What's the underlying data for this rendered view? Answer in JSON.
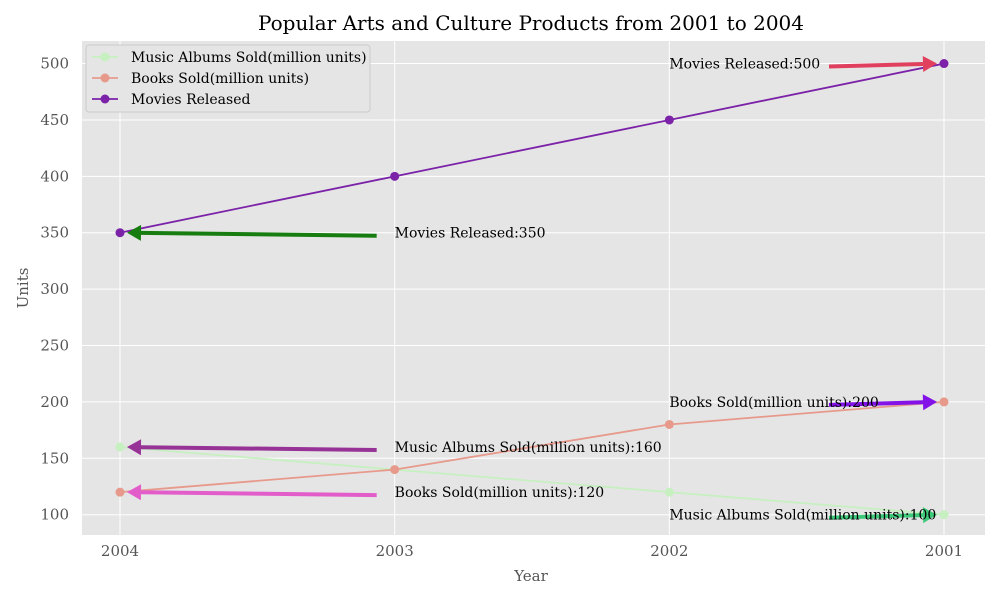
{
  "chart_data": {
    "type": "line",
    "title": "Popular Arts and Culture Products from 2001 to 2004",
    "xlabel": "Year",
    "ylabel": "Units",
    "categories": [
      "2004",
      "2003",
      "2002",
      "2001"
    ],
    "ylim": [
      82,
      520
    ],
    "yticks": [
      100,
      150,
      200,
      250,
      300,
      350,
      400,
      450,
      500
    ],
    "grid": true,
    "legend_position": "top-left",
    "background_color": "#e5e5e5",
    "series": [
      {
        "name": "Music Albums Sold(million units)",
        "values": [
          160,
          140,
          120,
          100
        ],
        "color": "#c6f0c0"
      },
      {
        "name": "Books Sold(million units)",
        "values": [
          120,
          140,
          180,
          200
        ],
        "color": "#e79a8c"
      },
      {
        "name": "Movies Released",
        "values": [
          350,
          400,
          450,
          500
        ],
        "color": "#7b22a8"
      }
    ],
    "annotations": [
      {
        "text": "Movies Released:500",
        "target_x": "2001",
        "target_y": 500,
        "text_x": 2.0,
        "text_y": 500,
        "color": "#e0405e"
      },
      {
        "text": "Movies Released:350",
        "target_x": "2004",
        "target_y": 350,
        "text_x": 1.0,
        "text_y": 350,
        "color": "#177d10"
      },
      {
        "text": "Books Sold(million units):200",
        "target_x": "2001",
        "target_y": 200,
        "text_x": 2.0,
        "text_y": 200,
        "color": "#8312e8"
      },
      {
        "text": "Music Albums Sold(million units):160",
        "target_x": "2004",
        "target_y": 160,
        "text_x": 1.0,
        "text_y": 160,
        "color": "#973296"
      },
      {
        "text": "Books Sold(million units):120",
        "target_x": "2004",
        "target_y": 120,
        "text_x": 1.0,
        "text_y": 120,
        "color": "#e25dc9"
      },
      {
        "text": "Music Albums Sold(million units):100",
        "target_x": "2001",
        "target_y": 100,
        "text_x": 2.0,
        "text_y": 100,
        "color": "#3ec87a"
      }
    ]
  }
}
